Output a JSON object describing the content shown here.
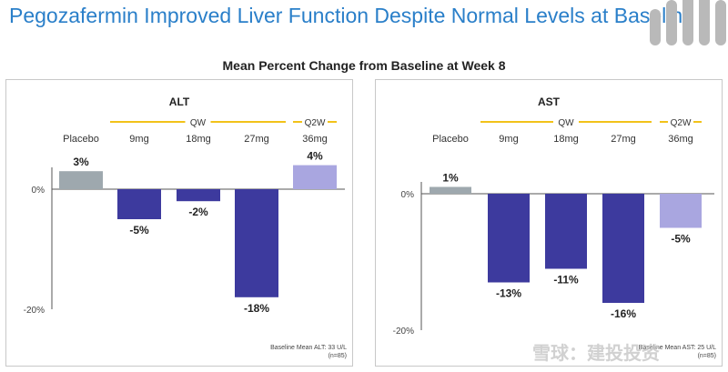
{
  "title": "Pegozafermin Improved Liver Function Despite Normal Levels at Baseline",
  "subtitle": "Mean Percent Change from Baseline at Week 8",
  "colors": {
    "title": "#2a7fc9",
    "placebo": "#9ea8ae",
    "qw": "#3d3a9e",
    "q2w": "#a9a6e0",
    "bracket": "#f2c21a"
  },
  "chart_data": [
    {
      "type": "bar",
      "title": "ALT",
      "categories": [
        "Placebo",
        "9mg",
        "18mg",
        "27mg",
        "36mg"
      ],
      "groups": [
        "Placebo",
        "QW",
        "QW",
        "QW",
        "Q2W"
      ],
      "values": [
        3,
        -5,
        -2,
        -18,
        4
      ],
      "value_labels": [
        "3%",
        "-5%",
        "-2%",
        "-18%",
        "4%"
      ],
      "group_labels": {
        "qw": "QW",
        "q2w": "Q2W"
      },
      "ylim": [
        -20,
        4
      ],
      "yticks": [
        {
          "value": 0,
          "label": "0%"
        },
        {
          "value": -20,
          "label": "-20%"
        }
      ],
      "footnote": [
        "Baseline Mean ALT: 33 U/L",
        "(n=85)"
      ]
    },
    {
      "type": "bar",
      "title": "AST",
      "categories": [
        "Placebo",
        "9mg",
        "18mg",
        "27mg",
        "36mg"
      ],
      "groups": [
        "Placebo",
        "QW",
        "QW",
        "QW",
        "Q2W"
      ],
      "values": [
        1,
        -13,
        -11,
        -16,
        -5
      ],
      "value_labels": [
        "1%",
        "-13%",
        "-11%",
        "-16%",
        "-5%"
      ],
      "group_labels": {
        "qw": "QW",
        "q2w": "Q2W"
      },
      "ylim": [
        -20,
        1
      ],
      "yticks": [
        {
          "value": 0,
          "label": "0%"
        },
        {
          "value": -20,
          "label": "-20%"
        }
      ],
      "footnote": [
        "Baseline Mean AST: 25 U/L",
        "(n=85)"
      ]
    }
  ],
  "watermark": "雪球：建投投资"
}
